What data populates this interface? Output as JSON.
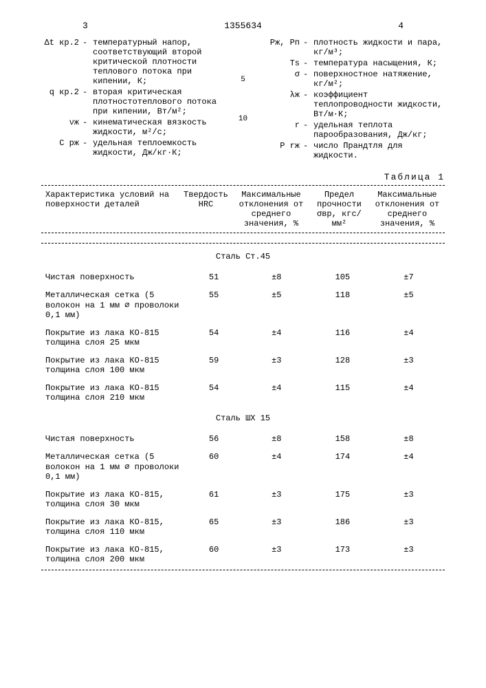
{
  "header": {
    "left_col": "3",
    "doc_num": "1355634",
    "right_col": "4"
  },
  "defs_left": [
    {
      "sym": "Δt кр.2",
      "text": "температурный напор, соответствующий второй критической плотности теплового потока при кипении, К;"
    },
    {
      "sym": "q кр.2",
      "text": "вторая критическая плотностотеплового потока при кипении, Вт/м²;"
    },
    {
      "sym": "νж",
      "text": "кинематическая вязкость жидкости, м²/с;"
    },
    {
      "sym": "C рж",
      "text": "удельная теплоемкость жидкости, Дж/кг·К;"
    }
  ],
  "line_nums": [
    "5",
    "10"
  ],
  "defs_right": [
    {
      "sym": "Pж, Pп",
      "text": "плотность жидкости и пара, кг/м³;"
    },
    {
      "sym": "Ts",
      "text": "температура насыщения, К;"
    },
    {
      "sym": "σ",
      "text": "поверхностное натяжение, кг/м²;"
    },
    {
      "sym": "λж",
      "text": "коэффициент теплопроводности жидкости, Вт/м·К;"
    },
    {
      "sym": "r",
      "text": "удельная теплота парообразования, Дж/кг;"
    },
    {
      "sym": "P rж",
      "text": "число Прандтля для жидкости."
    }
  ],
  "table": {
    "caption": "Таблица 1",
    "headers": {
      "desc": "Характеристика условий на поверхности деталей",
      "hrc": "Твердость HRC",
      "dev1": "Максимальные отклонения от среднего значения, %",
      "str": "Предел прочности σвр, кгс/мм²",
      "dev2": "Максимальные отклонения от среднего значения, %"
    },
    "section1": "Сталь   Ст.45",
    "rows1": [
      {
        "desc": "Чистая поверхность",
        "hrc": "51",
        "dev1": "±8",
        "str": "105",
        "dev2": "±7"
      },
      {
        "desc": "Металлическая сетка (5 волокон на 1 мм ⌀ проволоки 0,1 мм)",
        "hrc": "55",
        "dev1": "±5",
        "str": "118",
        "dev2": "±5"
      },
      {
        "desc": "Покрытие из лака КО-815 толщина слоя 25 мкм",
        "hrc": "54",
        "dev1": "±4",
        "str": "116",
        "dev2": "±4"
      },
      {
        "desc": "Покрытие из лака КО-815 толщина слоя 100 мкм",
        "hrc": "59",
        "dev1": "±3",
        "str": "128",
        "dev2": "±3"
      },
      {
        "desc": "Покрытие из лака КО-815 толщина слоя 210 мкм",
        "hrc": "54",
        "dev1": "±4",
        "str": "115",
        "dev2": "±4"
      }
    ],
    "section2": "Сталь ШХ 15",
    "rows2": [
      {
        "desc": "Чистая поверхность",
        "hrc": "56",
        "dev1": "±8",
        "str": "158",
        "dev2": "±8"
      },
      {
        "desc": "Металлическая сетка (5 волокон на 1 мм ⌀ проволоки 0,1 мм)",
        "hrc": "60",
        "dev1": "±4",
        "str": "174",
        "dev2": "±4"
      },
      {
        "desc": "Покрытие из лака КО-815, толщина слоя 30 мкм",
        "hrc": "61",
        "dev1": "±3",
        "str": "175",
        "dev2": "±3"
      },
      {
        "desc": "Покрытие из лака КО-815, толщина слоя 110 мкм",
        "hrc": "65",
        "dev1": "±3",
        "str": "186",
        "dev2": "±3"
      },
      {
        "desc": "Покрытие из лака КО-815, толщина слоя 200 мкм",
        "hrc": "60",
        "dev1": "±3",
        "str": "173",
        "dev2": "±3"
      }
    ]
  }
}
